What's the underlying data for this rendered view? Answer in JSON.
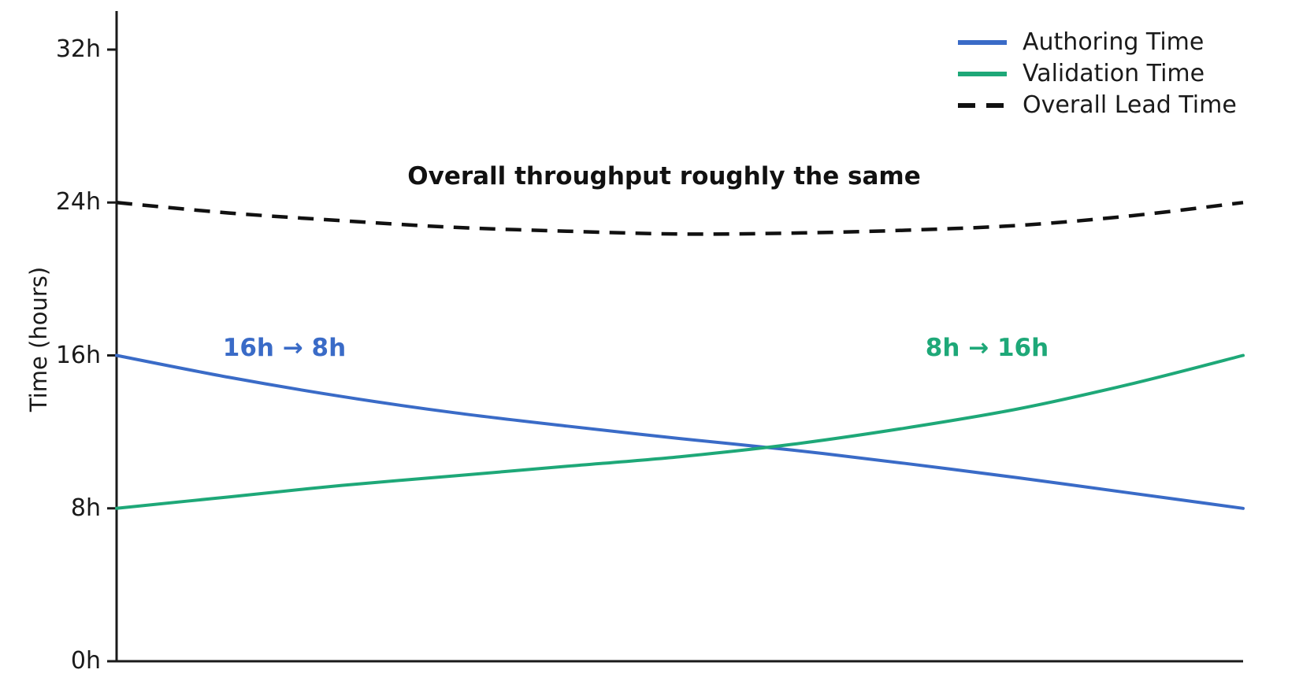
{
  "chart_data": {
    "type": "line",
    "title_annotation": "Overall throughput roughly the same",
    "ylabel": "Time (hours)",
    "xlabel": "",
    "yticks": [
      "0h",
      "8h",
      "16h",
      "24h",
      "32h"
    ],
    "ytick_values": [
      0,
      8,
      16,
      24,
      32
    ],
    "ylim": [
      0,
      34
    ],
    "x": [
      0,
      0.1,
      0.2,
      0.3,
      0.4,
      0.5,
      0.6,
      0.7,
      0.8,
      0.9,
      1.0
    ],
    "series": [
      {
        "name": "Authoring Time",
        "color": "#3a6bc7",
        "style": "solid",
        "values": [
          16,
          14.85,
          13.85,
          13.0,
          12.3,
          11.65,
          11.05,
          10.35,
          9.6,
          8.8,
          8.0
        ]
      },
      {
        "name": "Validation Time",
        "color": "#1ea878",
        "style": "solid",
        "values": [
          8,
          8.6,
          9.2,
          9.7,
          10.2,
          10.7,
          11.35,
          12.2,
          13.2,
          14.5,
          16.0
        ]
      },
      {
        "name": "Overall Lead Time",
        "color": "#111111",
        "style": "dashed",
        "values": [
          24,
          23.45,
          23.05,
          22.7,
          22.5,
          22.35,
          22.4,
          22.55,
          22.8,
          23.3,
          24.0
        ]
      }
    ],
    "annotations": [
      {
        "text": "16h → 8h",
        "series": "Authoring Time",
        "color": "#3a6bc7"
      },
      {
        "text": "8h → 16h",
        "series": "Validation Time",
        "color": "#1ea878"
      }
    ],
    "legend_position": "upper right",
    "grid": false,
    "axis_color": "#1a1a1a"
  }
}
